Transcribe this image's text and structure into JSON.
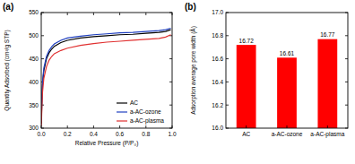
{
  "chart_data": [
    {
      "type": "line",
      "title": "(a)",
      "x_label": "Relative Pressure (P/P₀)",
      "y_label": "Quantity Adsorbed (cm³/g STP)",
      "x": [
        0.001,
        0.005,
        0.01,
        0.02,
        0.04,
        0.06,
        0.08,
        0.1,
        0.15,
        0.2,
        0.3,
        0.4,
        0.5,
        0.6,
        0.7,
        0.8,
        0.9,
        0.95,
        0.99
      ],
      "series": [
        {
          "name": "AC",
          "color": "#000000",
          "values": [
            310,
            360,
            395,
            425,
            450,
            463,
            471,
            477,
            485,
            490,
            495,
            498,
            500,
            502,
            503,
            505,
            507,
            509,
            513
          ]
        },
        {
          "name": "a-AC-ozone",
          "color": "#1f3fbf",
          "values": [
            315,
            365,
            400,
            430,
            455,
            468,
            476,
            482,
            490,
            495,
            499,
            502,
            504,
            506,
            507,
            509,
            511,
            513,
            516
          ]
        },
        {
          "name": "a-AC-plasma",
          "color": "#e03030",
          "values": [
            305,
            345,
            378,
            408,
            433,
            447,
            455,
            461,
            468,
            473,
            479,
            483,
            486,
            488,
            490,
            492,
            494,
            497,
            502
          ]
        }
      ],
      "xlim": [
        0,
        1
      ],
      "xticks": [
        {
          "value": 0,
          "label": "0.0"
        },
        0.2,
        0.4,
        0.6,
        0.8,
        {
          "value": 1,
          "label": "1.0"
        }
      ],
      "ylim": [
        300,
        550
      ],
      "yticks": [
        300,
        350,
        400,
        450,
        500,
        550
      ],
      "legend": "lower right"
    },
    {
      "type": "bar",
      "title": "(b)",
      "y_label": "Adsorption average pore width (Å)",
      "categories": [
        "AC",
        "a-AC-ozone",
        "a-AC-plasma"
      ],
      "values": [
        16.72,
        16.61,
        16.77
      ],
      "color": "#ff0000",
      "ylim": [
        16.0,
        17.0
      ],
      "yticks": [
        {
          "value": 16.0,
          "label": "16.0"
        },
        16.2,
        16.4,
        16.6,
        16.8,
        {
          "value": 17.0,
          "label": "17.0"
        }
      ],
      "data_labels": true
    }
  ]
}
